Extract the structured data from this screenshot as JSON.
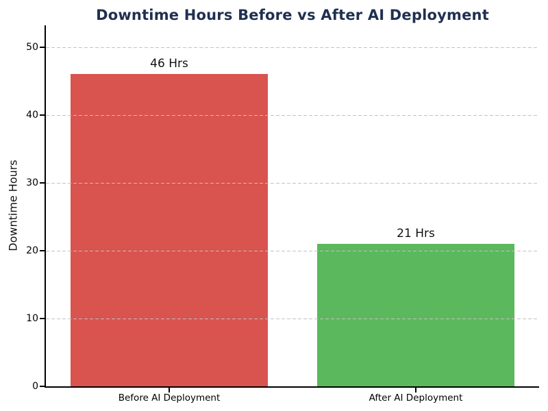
{
  "chart_data": {
    "type": "bar",
    "title": "Downtime Hours Before vs After AI Deployment",
    "xlabel": "",
    "ylabel": "Downtime Hours",
    "categories": [
      "Before AI Deployment",
      "After AI Deployment"
    ],
    "values": [
      46,
      21
    ],
    "bar_value_labels": [
      "46 Hrs",
      "21 Hrs"
    ],
    "bar_colors": [
      "#d9534f",
      "#5cb85c"
    ],
    "yticks": [
      0,
      10,
      20,
      30,
      40,
      50
    ],
    "ylim": [
      0,
      53.2
    ],
    "bar_width_fraction": 0.8,
    "grid": "horizontal-dashed",
    "grid_color": "#c2c2c2",
    "legend": "none",
    "title_color": "#1f3050",
    "axis_color": "#000000",
    "background_color": "#ffffff"
  }
}
